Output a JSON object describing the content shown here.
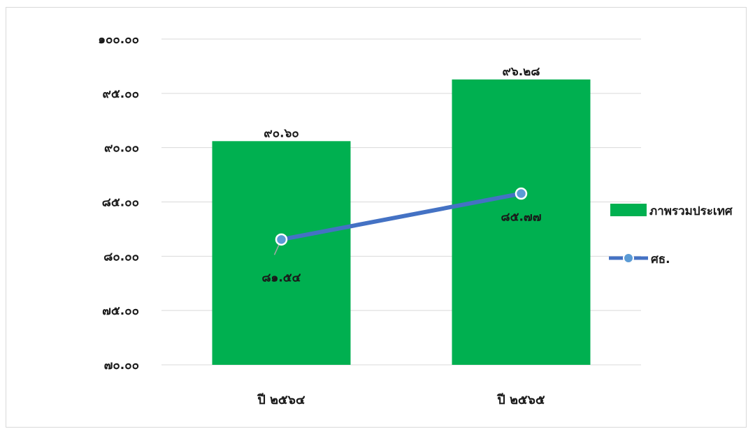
{
  "chart_data": {
    "type": "bar",
    "categories": [
      "ปี ๒๕๖๔",
      "ปี ๒๕๖๕"
    ],
    "ylim": [
      70,
      100
    ],
    "ytick_values": [
      70,
      75,
      80,
      85,
      90,
      95,
      100
    ],
    "ytick_labels": [
      "๗๐.๐๐",
      "๗๕.๐๐",
      "๘๐.๐๐",
      "๘๕.๐๐",
      "๙๐.๐๐",
      "๙๕.๐๐",
      "๑๐๐.๐๐"
    ],
    "grid": true,
    "legend_position": "right",
    "series": [
      {
        "name": "ภาพรวมประเทศ",
        "type": "bar",
        "color": "#00b050",
        "values": [
          90.6,
          96.28
        ],
        "labels": [
          "๙๐.๖๐",
          "๙๖.๒๘"
        ]
      },
      {
        "name": "ศธ.",
        "type": "line",
        "color": "#4472c4",
        "marker_color": "#5b9bd5",
        "values": [
          81.54,
          85.77
        ],
        "labels": [
          "๘๑.๕๔",
          "๘๕.๗๗"
        ]
      }
    ]
  }
}
